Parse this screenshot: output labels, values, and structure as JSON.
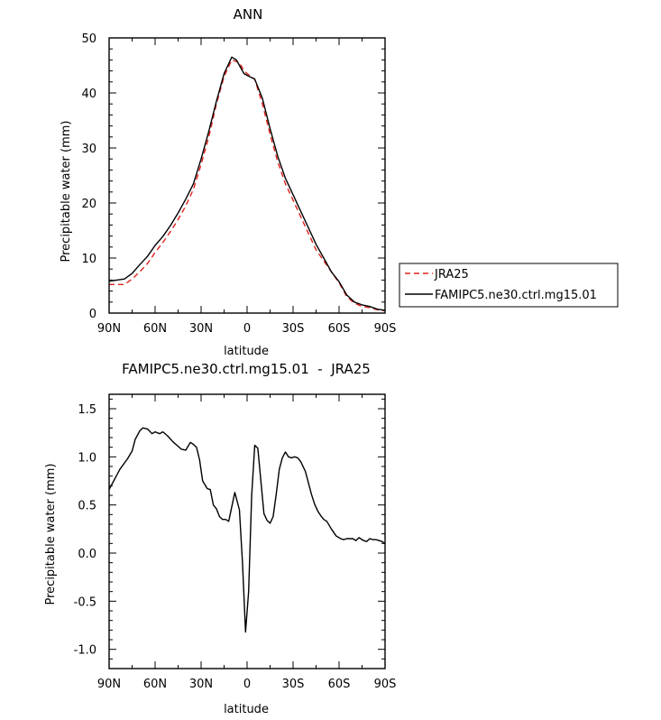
{
  "chart_data": [
    {
      "type": "line",
      "title": "ANN",
      "xlabel": "latitude",
      "ylabel": "Precipitable water (mm)",
      "xlim": [
        90,
        -90
      ],
      "ylim": [
        0,
        50
      ],
      "x_ticks": [
        90,
        60,
        30,
        0,
        -30,
        -60,
        -90
      ],
      "x_tick_labels": [
        "90N",
        "60N",
        "30N",
        "0",
        "30S",
        "60S",
        "90S"
      ],
      "y_ticks": [
        0,
        10,
        20,
        30,
        40,
        50
      ],
      "y_tick_labels": [
        "0",
        "10",
        "20",
        "30",
        "40",
        "50"
      ],
      "legend": "outside-right",
      "series": [
        {
          "name": "JRA25",
          "color": "#e0201b",
          "dash": "dashed",
          "x": [
            90,
            80,
            75,
            70,
            65,
            60,
            55,
            50,
            45,
            40,
            35,
            30,
            25,
            20,
            15,
            10,
            5,
            2,
            0,
            -5,
            -10,
            -15,
            -20,
            -25,
            -30,
            -35,
            -40,
            -45,
            -50,
            -55,
            -60,
            -65,
            -70,
            -75,
            -80,
            -85,
            -90
          ],
          "y": [
            5.2,
            5.2,
            6.2,
            7.5,
            9.0,
            11.0,
            12.8,
            14.8,
            17.0,
            19.5,
            22.5,
            27.0,
            32.0,
            38.0,
            43.0,
            46.0,
            45.5,
            44.0,
            43.5,
            42.5,
            38.0,
            32.5,
            27.5,
            23.5,
            20.5,
            17.5,
            14.5,
            11.5,
            9.5,
            7.5,
            5.5,
            3.0,
            1.8,
            1.2,
            1.0,
            0.6,
            0.4
          ]
        },
        {
          "name": "FAMIPC5.ne30.ctrl.mg15.01",
          "color": "#000000",
          "dash": "solid",
          "x": [
            90,
            85,
            80,
            75,
            70,
            65,
            60,
            55,
            50,
            45,
            40,
            35,
            30,
            25,
            20,
            15,
            10,
            7,
            5,
            2,
            0,
            -5,
            -10,
            -15,
            -20,
            -25,
            -30,
            -35,
            -40,
            -45,
            -50,
            -55,
            -60,
            -65,
            -70,
            -75,
            -80,
            -85,
            -90
          ],
          "y": [
            5.8,
            6.0,
            6.2,
            7.2,
            8.8,
            10.3,
            12.3,
            13.9,
            15.9,
            18.2,
            20.7,
            23.5,
            28.0,
            33.0,
            38.5,
            43.5,
            46.5,
            46.0,
            45.0,
            43.5,
            43.2,
            42.5,
            39.0,
            33.5,
            28.5,
            24.5,
            21.5,
            18.5,
            15.5,
            12.5,
            10.0,
            7.5,
            5.7,
            3.3,
            2.0,
            1.5,
            1.2,
            0.7,
            0.5
          ]
        }
      ]
    },
    {
      "type": "line",
      "title": "FAMIPC5.ne30.ctrl.mg15.01  -  JRA25",
      "xlabel": "latitude",
      "ylabel": "Precipitable water (mm)",
      "xlim": [
        90,
        -90
      ],
      "ylim": [
        -1.2,
        1.65
      ],
      "x_ticks": [
        90,
        60,
        30,
        0,
        -30,
        -60,
        -90
      ],
      "x_tick_labels": [
        "90N",
        "60N",
        "30N",
        "0",
        "30S",
        "60S",
        "90S"
      ],
      "y_ticks": [
        -1.0,
        -0.5,
        0.0,
        0.5,
        1.0,
        1.5
      ],
      "y_tick_labels": [
        "-1.0",
        "-0.5",
        "0.0",
        "0.5",
        "1.0",
        "1.5"
      ],
      "series": [
        {
          "color": "#000000",
          "dash": "solid",
          "x": [
            90,
            87,
            83,
            78,
            75,
            73,
            70,
            68,
            65,
            62,
            60,
            57,
            55,
            52,
            48,
            45,
            43,
            40,
            37,
            35,
            33,
            31,
            29,
            26,
            24,
            22,
            20,
            18,
            16,
            14,
            12,
            10,
            8,
            5,
            3,
            1,
            -1,
            -3,
            -5,
            -7,
            -9,
            -11,
            -13,
            -15,
            -17,
            -19,
            -21,
            -23,
            -25,
            -27,
            -29,
            -31,
            -33,
            -35,
            -38,
            -40,
            -42,
            -44,
            -46,
            -48,
            -50,
            -52,
            -55,
            -58,
            -61,
            -63,
            -65,
            -67,
            -69,
            -71,
            -73,
            -76,
            -78,
            -80,
            -82,
            -84,
            -86,
            -88,
            -90
          ],
          "y": [
            0.66,
            0.75,
            0.87,
            0.98,
            1.06,
            1.18,
            1.27,
            1.3,
            1.29,
            1.24,
            1.26,
            1.24,
            1.26,
            1.22,
            1.15,
            1.11,
            1.08,
            1.07,
            1.15,
            1.13,
            1.1,
            0.97,
            0.75,
            0.67,
            0.66,
            0.5,
            0.46,
            0.38,
            0.35,
            0.35,
            0.33,
            0.48,
            0.63,
            0.45,
            -0.1,
            -0.82,
            -0.4,
            0.6,
            1.12,
            1.09,
            0.75,
            0.41,
            0.34,
            0.31,
            0.38,
            0.61,
            0.87,
            0.99,
            1.05,
            1.0,
            0.99,
            1.0,
            0.99,
            0.95,
            0.85,
            0.73,
            0.61,
            0.51,
            0.44,
            0.39,
            0.35,
            0.33,
            0.25,
            0.18,
            0.15,
            0.14,
            0.15,
            0.15,
            0.15,
            0.13,
            0.16,
            0.13,
            0.12,
            0.15,
            0.14,
            0.14,
            0.13,
            0.12,
            0.1
          ]
        }
      ]
    }
  ]
}
